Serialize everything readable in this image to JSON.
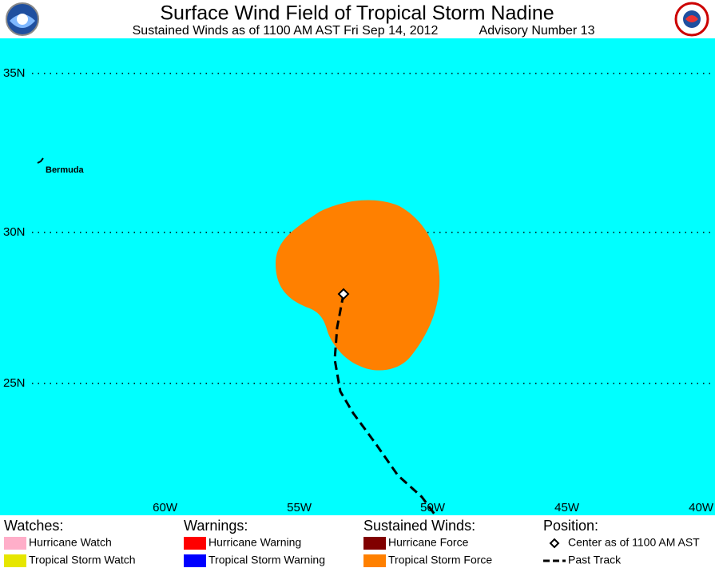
{
  "header": {
    "title": "Surface Wind Field of Tropical Storm Nadine",
    "subtitle": "Sustained Winds as of 1100 AM AST Fri Sep 14, 2012",
    "advisory": "Advisory Number 13"
  },
  "map": {
    "background": "#00ffff",
    "latitude_labels": [
      "35N",
      "30N",
      "25N"
    ],
    "longitude_labels": [
      "60W",
      "55W",
      "50W",
      "45W",
      "40W"
    ],
    "places": [
      {
        "label": "Bermuda"
      }
    ],
    "wind_field_color": "#ff8000"
  },
  "legend": {
    "groups": [
      {
        "title": "Watches:",
        "items": [
          {
            "label": "Hurricane Watch",
            "color": "#ffaec9"
          },
          {
            "label": "Tropical Storm Watch",
            "color": "#e6e600"
          }
        ]
      },
      {
        "title": "Warnings:",
        "items": [
          {
            "label": "Hurricane Warning",
            "color": "#ff0000"
          },
          {
            "label": "Tropical Storm Warning",
            "color": "#0000ff"
          }
        ]
      },
      {
        "title": "Sustained Winds:",
        "items": [
          {
            "label": "Hurricane Force",
            "color": "#800000"
          },
          {
            "label": "Tropical Storm Force",
            "color": "#ff8000"
          }
        ]
      },
      {
        "title": "Position:",
        "items": [
          {
            "label": "Center as of 1100 AM AST"
          },
          {
            "label": "Past Track"
          }
        ]
      }
    ]
  }
}
